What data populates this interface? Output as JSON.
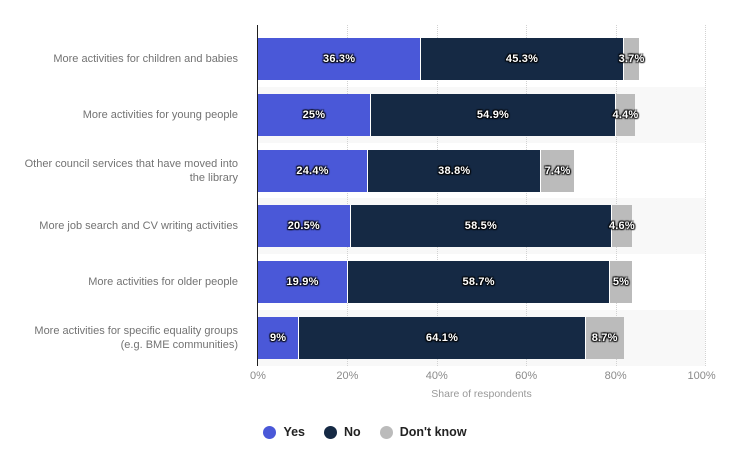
{
  "chart_data": {
    "type": "bar",
    "orientation": "horizontal",
    "stacked": true,
    "xlabel": "Share of respondents",
    "xlim": [
      0,
      100
    ],
    "x_ticks": [
      "0%",
      "20%",
      "40%",
      "60%",
      "80%",
      "100%"
    ],
    "grid": "vertical dotted gridlines at 20% steps",
    "legend_position": "bottom center",
    "categories": [
      "More activities for children and babies",
      "More activities for young people",
      "Other council services that have moved into the library",
      "More job search and CV writing activities",
      "More activities for older people",
      "More activities for specific equality groups (e.g. BME communities)"
    ],
    "series": [
      {
        "name": "Yes",
        "color": "#4a58d8",
        "values": [
          36.3,
          25,
          24.4,
          20.5,
          19.9,
          9
        ],
        "labels": [
          "36.3%",
          "25%",
          "24.4%",
          "20.5%",
          "19.9%",
          "9%"
        ]
      },
      {
        "name": "No",
        "color": "#152944",
        "values": [
          45.3,
          54.9,
          38.8,
          58.5,
          58.7,
          64.1
        ],
        "labels": [
          "45.3%",
          "54.9%",
          "38.8%",
          "58.5%",
          "58.7%",
          "64.1%"
        ]
      },
      {
        "name": "Don't know",
        "color": "#bbbbbb",
        "values": [
          3.7,
          4.4,
          7.4,
          4.6,
          5,
          8.7
        ],
        "labels": [
          "3.7%",
          "4.4%",
          "7.4%",
          "4.6%",
          "5%",
          "8.7%"
        ]
      }
    ],
    "colors": {
      "background": "#ffffff",
      "row_band": "#f8f8f8",
      "gridline": "#d2d2d2",
      "axis_line": "#1f1f1f",
      "category_label": "#737373",
      "tick_label": "#8a8a8a",
      "value_label": "#ffffff"
    }
  }
}
